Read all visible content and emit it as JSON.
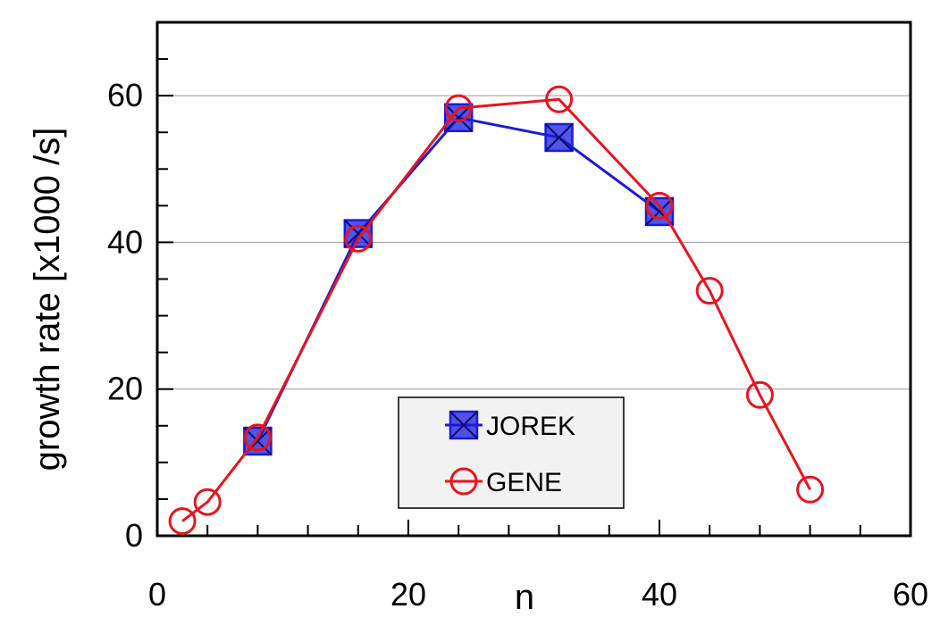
{
  "chart_data": {
    "type": "line",
    "xlabel": "n",
    "ylabel": "growth rate [x1000 /s]",
    "xlim": [
      0,
      60
    ],
    "ylim": [
      0,
      70
    ],
    "x_ticks": [
      0,
      20,
      40,
      60
    ],
    "y_ticks": [
      0,
      20,
      40,
      60
    ],
    "x_minor_step": 4,
    "y_minor_step": 5,
    "y_gridlines": [
      20,
      40,
      60
    ],
    "legend_position": "bottom-center",
    "series": [
      {
        "name": "JOREK",
        "color": "#1a1adc",
        "marker": "square-x",
        "x": [
          8,
          16,
          24,
          32,
          40
        ],
        "y": [
          12.9,
          41.2,
          57.0,
          54.3,
          44.2
        ]
      },
      {
        "name": "GENE",
        "color": "#e8141e",
        "marker": "circle",
        "x": [
          2,
          4,
          8,
          16,
          24,
          32,
          40,
          44,
          48,
          52
        ],
        "y": [
          2.0,
          4.6,
          13.4,
          40.5,
          58.3,
          59.5,
          45.0,
          33.4,
          19.2,
          6.3
        ]
      }
    ]
  }
}
